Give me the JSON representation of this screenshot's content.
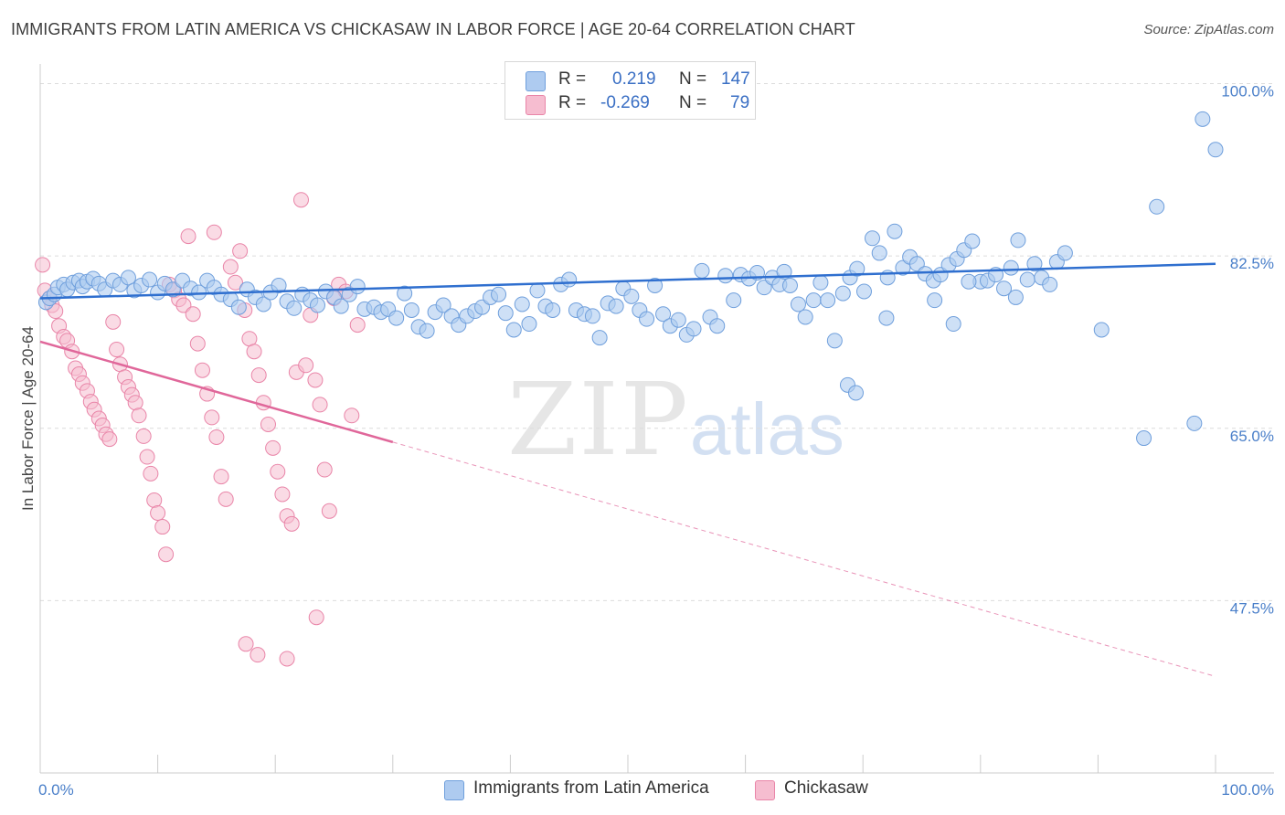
{
  "header": {
    "title": "IMMIGRANTS FROM LATIN AMERICA VS CHICKASAW IN LABOR FORCE | AGE 20-64 CORRELATION CHART",
    "source": "Source: ZipAtlas.com"
  },
  "watermark": {
    "zip": "ZIP",
    "atlas": "atlas"
  },
  "legend": {
    "r_label": "R =",
    "n_label": "N =",
    "rows": [
      {
        "r": "0.219",
        "n": "147"
      },
      {
        "r": "-0.269",
        "n": "79"
      }
    ]
  },
  "colors": {
    "blue_fill": "#aecbf0",
    "blue_stroke": "#6f9fdc",
    "blue_line": "#2f6fcf",
    "pink_fill": "#f6bdd0",
    "pink_stroke": "#e985a8",
    "pink_line": "#e0679a",
    "grid": "#dcdcdc",
    "tick_text": "#4a7fc9"
  },
  "chart_data": {
    "type": "scatter",
    "title": "IMMIGRANTS FROM LATIN AMERICA VS CHICKASAW IN LABOR FORCE | AGE 20-64 CORRELATION CHART",
    "ylabel": "In Labor Force | Age 20-64",
    "xlabel": "",
    "xlim": [
      0,
      100
    ],
    "ylim": [
      30,
      102
    ],
    "x_tick_labels": [
      "0.0%",
      "100.0%"
    ],
    "y_ticks": [
      {
        "value": 100.0,
        "label": "100.0%"
      },
      {
        "value": 82.5,
        "label": "82.5%"
      },
      {
        "value": 65.0,
        "label": "65.0%"
      },
      {
        "value": 47.5,
        "label": "47.5%"
      }
    ],
    "grid": "horizontal dashed",
    "legend_position": "top-center",
    "series": [
      {
        "name": "Immigrants from Latin America",
        "r": 0.219,
        "n": 147,
        "trend": {
          "x": [
            0,
            100
          ],
          "y": [
            78.2,
            81.7
          ]
        },
        "points": [
          [
            0.5,
            77.8
          ],
          [
            0.8,
            78.2
          ],
          [
            1.2,
            78.6
          ],
          [
            1.5,
            79.3
          ],
          [
            2.0,
            79.6
          ],
          [
            2.3,
            79.1
          ],
          [
            2.8,
            79.8
          ],
          [
            3.3,
            80.0
          ],
          [
            3.6,
            79.4
          ],
          [
            4.0,
            79.9
          ],
          [
            4.5,
            80.2
          ],
          [
            5.0,
            79.7
          ],
          [
            5.5,
            79.1
          ],
          [
            6.2,
            80.0
          ],
          [
            6.8,
            79.6
          ],
          [
            7.5,
            80.3
          ],
          [
            8.0,
            79.0
          ],
          [
            8.6,
            79.5
          ],
          [
            9.3,
            80.1
          ],
          [
            10.0,
            78.8
          ],
          [
            10.6,
            79.7
          ],
          [
            11.3,
            79.1
          ],
          [
            12.1,
            80.0
          ],
          [
            12.8,
            79.2
          ],
          [
            13.5,
            78.8
          ],
          [
            14.2,
            80.0
          ],
          [
            14.8,
            79.3
          ],
          [
            15.4,
            78.6
          ],
          [
            16.2,
            78.1
          ],
          [
            16.9,
            77.3
          ],
          [
            17.6,
            79.1
          ],
          [
            18.3,
            78.3
          ],
          [
            19.0,
            77.6
          ],
          [
            19.6,
            78.8
          ],
          [
            20.3,
            79.5
          ],
          [
            21.0,
            77.9
          ],
          [
            21.6,
            77.2
          ],
          [
            22.3,
            78.6
          ],
          [
            23.0,
            78.0
          ],
          [
            23.6,
            77.5
          ],
          [
            24.3,
            78.9
          ],
          [
            25.0,
            78.3
          ],
          [
            25.6,
            77.4
          ],
          [
            26.3,
            78.6
          ],
          [
            27.0,
            79.4
          ],
          [
            27.6,
            77.1
          ],
          [
            28.4,
            77.3
          ],
          [
            29.0,
            76.8
          ],
          [
            29.6,
            77.1
          ],
          [
            30.3,
            76.2
          ],
          [
            31.0,
            78.7
          ],
          [
            31.6,
            77.0
          ],
          [
            32.2,
            75.3
          ],
          [
            32.9,
            74.9
          ],
          [
            33.6,
            76.8
          ],
          [
            34.3,
            77.5
          ],
          [
            35.0,
            76.4
          ],
          [
            35.6,
            75.5
          ],
          [
            36.3,
            76.4
          ],
          [
            37.0,
            76.9
          ],
          [
            37.6,
            77.3
          ],
          [
            38.3,
            78.3
          ],
          [
            39.0,
            78.6
          ],
          [
            39.6,
            76.7
          ],
          [
            40.3,
            75.0
          ],
          [
            41.0,
            77.6
          ],
          [
            41.6,
            75.6
          ],
          [
            42.3,
            79.0
          ],
          [
            43.0,
            77.4
          ],
          [
            43.6,
            77.0
          ],
          [
            44.3,
            79.6
          ],
          [
            45.0,
            80.1
          ],
          [
            45.6,
            77.0
          ],
          [
            46.3,
            76.6
          ],
          [
            47.0,
            76.4
          ],
          [
            47.6,
            74.2
          ],
          [
            48.3,
            77.7
          ],
          [
            49.0,
            77.4
          ],
          [
            49.6,
            79.2
          ],
          [
            50.3,
            78.4
          ],
          [
            51.0,
            77.0
          ],
          [
            51.6,
            76.1
          ],
          [
            52.3,
            79.5
          ],
          [
            53.0,
            76.6
          ],
          [
            53.6,
            75.4
          ],
          [
            54.3,
            76.0
          ],
          [
            55.0,
            74.5
          ],
          [
            55.6,
            75.1
          ],
          [
            56.3,
            81.0
          ],
          [
            57.0,
            76.3
          ],
          [
            57.6,
            75.4
          ],
          [
            58.3,
            80.5
          ],
          [
            59.0,
            78.0
          ],
          [
            59.6,
            80.6
          ],
          [
            60.3,
            80.2
          ],
          [
            61.0,
            80.8
          ],
          [
            61.6,
            79.3
          ],
          [
            62.3,
            80.3
          ],
          [
            62.9,
            79.6
          ],
          [
            63.3,
            80.9
          ],
          [
            63.8,
            79.5
          ],
          [
            64.5,
            77.6
          ],
          [
            65.1,
            76.3
          ],
          [
            65.8,
            78.0
          ],
          [
            66.4,
            79.8
          ],
          [
            67.0,
            78.0
          ],
          [
            67.6,
            73.9
          ],
          [
            68.3,
            78.7
          ],
          [
            68.9,
            80.3
          ],
          [
            69.5,
            81.2
          ],
          [
            70.1,
            78.9
          ],
          [
            70.8,
            84.3
          ],
          [
            71.4,
            82.8
          ],
          [
            72.1,
            80.3
          ],
          [
            72.7,
            85.0
          ],
          [
            73.4,
            81.3
          ],
          [
            74.0,
            82.4
          ],
          [
            74.6,
            81.7
          ],
          [
            75.3,
            80.7
          ],
          [
            76.0,
            80.0
          ],
          [
            76.6,
            80.6
          ],
          [
            77.3,
            81.6
          ],
          [
            78.0,
            82.2
          ],
          [
            78.6,
            83.1
          ],
          [
            79.3,
            84.0
          ],
          [
            80.0,
            79.9
          ],
          [
            80.6,
            80.0
          ],
          [
            81.3,
            80.6
          ],
          [
            82.0,
            79.2
          ],
          [
            82.6,
            81.3
          ],
          [
            83.2,
            84.1
          ],
          [
            84.0,
            80.1
          ],
          [
            84.6,
            81.7
          ],
          [
            85.2,
            80.3
          ],
          [
            85.9,
            79.6
          ],
          [
            86.5,
            81.9
          ],
          [
            87.2,
            82.8
          ],
          [
            68.7,
            69.4
          ],
          [
            69.4,
            68.6
          ],
          [
            90.3,
            75.0
          ],
          [
            77.7,
            75.6
          ],
          [
            72.0,
            76.2
          ],
          [
            76.1,
            78.0
          ],
          [
            79.0,
            79.9
          ],
          [
            83.0,
            78.3
          ],
          [
            93.9,
            64.0
          ],
          [
            95.0,
            87.5
          ],
          [
            98.2,
            65.5
          ],
          [
            98.9,
            96.4
          ],
          [
            100.0,
            93.3
          ]
        ]
      },
      {
        "name": "Chickasaw",
        "r": -0.269,
        "n": 79,
        "trend": {
          "x": [
            0,
            30
          ],
          "y": [
            73.8,
            63.6
          ]
        },
        "trend_dashed": {
          "x": [
            30,
            100
          ],
          "y": [
            63.6,
            39.8
          ]
        },
        "points": [
          [
            0.4,
            79.0
          ],
          [
            0.8,
            78.2
          ],
          [
            1.0,
            77.5
          ],
          [
            1.3,
            76.9
          ],
          [
            1.6,
            75.4
          ],
          [
            2.0,
            74.3
          ],
          [
            2.3,
            73.9
          ],
          [
            2.7,
            72.8
          ],
          [
            3.0,
            71.1
          ],
          [
            3.3,
            70.5
          ],
          [
            3.6,
            69.6
          ],
          [
            4.0,
            68.8
          ],
          [
            4.3,
            67.7
          ],
          [
            4.6,
            66.9
          ],
          [
            5.0,
            66.0
          ],
          [
            5.3,
            65.3
          ],
          [
            5.6,
            64.4
          ],
          [
            5.9,
            63.9
          ],
          [
            6.2,
            75.8
          ],
          [
            6.5,
            73.0
          ],
          [
            6.8,
            71.5
          ],
          [
            7.2,
            70.2
          ],
          [
            7.5,
            69.2
          ],
          [
            7.8,
            68.4
          ],
          [
            8.1,
            67.6
          ],
          [
            8.4,
            66.3
          ],
          [
            8.8,
            64.2
          ],
          [
            9.1,
            62.1
          ],
          [
            9.4,
            60.4
          ],
          [
            9.7,
            57.7
          ],
          [
            10.0,
            56.4
          ],
          [
            10.4,
            55.0
          ],
          [
            10.7,
            52.2
          ],
          [
            11.0,
            79.6
          ],
          [
            11.4,
            79.0
          ],
          [
            11.8,
            78.1
          ],
          [
            12.2,
            77.5
          ],
          [
            12.6,
            84.5
          ],
          [
            13.0,
            76.6
          ],
          [
            13.4,
            73.6
          ],
          [
            13.8,
            70.9
          ],
          [
            14.2,
            68.5
          ],
          [
            14.6,
            66.1
          ],
          [
            15.0,
            64.1
          ],
          [
            15.4,
            60.1
          ],
          [
            15.8,
            57.8
          ],
          [
            16.2,
            81.4
          ],
          [
            16.6,
            79.8
          ],
          [
            17.0,
            83.0
          ],
          [
            17.4,
            77.0
          ],
          [
            17.8,
            74.1
          ],
          [
            18.2,
            72.8
          ],
          [
            18.6,
            70.4
          ],
          [
            19.0,
            67.6
          ],
          [
            19.4,
            65.4
          ],
          [
            19.8,
            63.0
          ],
          [
            20.2,
            60.6
          ],
          [
            20.6,
            58.3
          ],
          [
            21.0,
            56.1
          ],
          [
            21.4,
            55.3
          ],
          [
            21.8,
            70.7
          ],
          [
            22.2,
            88.2
          ],
          [
            22.6,
            71.4
          ],
          [
            23.0,
            76.5
          ],
          [
            23.4,
            69.9
          ],
          [
            23.8,
            67.4
          ],
          [
            24.2,
            60.8
          ],
          [
            24.6,
            56.6
          ],
          [
            25.0,
            78.2
          ],
          [
            25.4,
            79.6
          ],
          [
            26.0,
            78.9
          ],
          [
            26.5,
            66.3
          ],
          [
            27.0,
            75.5
          ],
          [
            17.5,
            43.1
          ],
          [
            18.5,
            42.0
          ],
          [
            21.0,
            41.6
          ],
          [
            23.5,
            45.8
          ],
          [
            14.8,
            84.9
          ],
          [
            0.2,
            81.6
          ]
        ]
      }
    ]
  },
  "bottom_legend": [
    {
      "label": "Immigrants from Latin America"
    },
    {
      "label": "Chickasaw"
    }
  ]
}
